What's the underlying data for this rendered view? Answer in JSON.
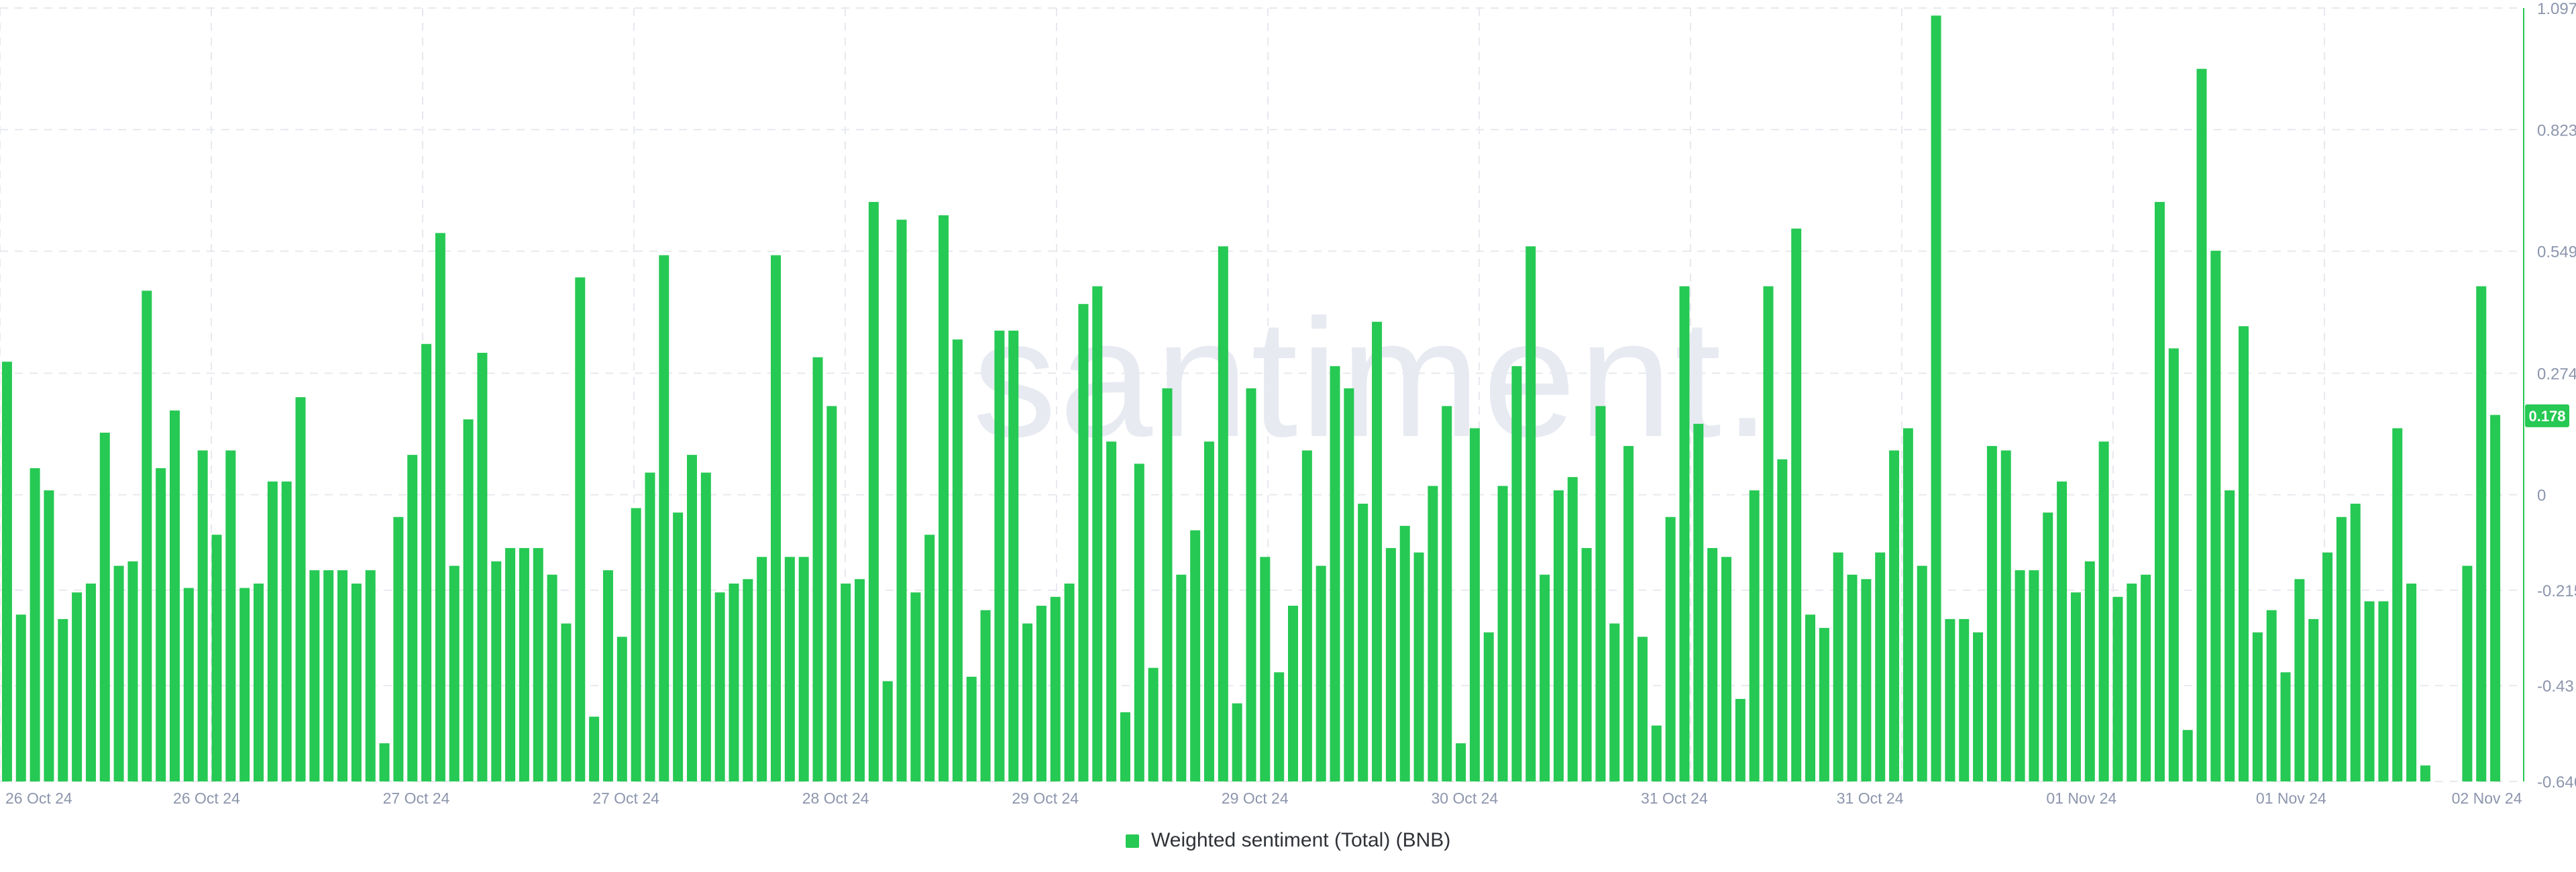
{
  "watermark": "santiment.",
  "colors": {
    "bar": "#26c953",
    "grid": "#e7e9ee",
    "tick": "#8c95ad",
    "badge": "#26c953"
  },
  "chart_data": {
    "type": "bar",
    "title": "",
    "xlabel": "",
    "ylabel": "",
    "series_name": "Weighted sentiment (Total) (BNB)",
    "ylim": [
      -0.646,
      1.097
    ],
    "yticks": [
      "1.097",
      "0.823",
      "0.549",
      "0.274",
      "0",
      "-0.215",
      "-0.43",
      "-0.646"
    ],
    "ytick_values": [
      1.097,
      0.823,
      0.549,
      0.274,
      0,
      -0.215,
      -0.43,
      -0.646
    ],
    "xticks": [
      {
        "label": "26 Oct 24",
        "index": 0
      },
      {
        "label": "26 Oct 24",
        "index": 12
      },
      {
        "label": "27 Oct 24",
        "index": 27
      },
      {
        "label": "27 Oct 24",
        "index": 42
      },
      {
        "label": "28 Oct 24",
        "index": 57
      },
      {
        "label": "29 Oct 24",
        "index": 72
      },
      {
        "label": "29 Oct 24",
        "index": 87
      },
      {
        "label": "30 Oct 24",
        "index": 102
      },
      {
        "label": "31 Oct 24",
        "index": 117
      },
      {
        "label": "31 Oct 24",
        "index": 131
      },
      {
        "label": "01 Nov 24",
        "index": 146
      },
      {
        "label": "01 Nov 24",
        "index": 161
      },
      {
        "label": "02 Nov 24",
        "index": 175
      }
    ],
    "current_value": "0.178",
    "values": [
      0.3,
      -0.27,
      0.06,
      0.01,
      -0.28,
      -0.22,
      -0.2,
      0.14,
      -0.16,
      -0.15,
      0.46,
      0.06,
      0.19,
      -0.21,
      0.1,
      -0.09,
      0.1,
      -0.21,
      -0.2,
      0.03,
      0.03,
      0.22,
      -0.17,
      -0.17,
      -0.17,
      -0.2,
      -0.17,
      -0.56,
      -0.05,
      0.09,
      0.34,
      0.59,
      -0.16,
      0.17,
      0.32,
      -0.15,
      -0.12,
      -0.12,
      -0.12,
      -0.18,
      -0.29,
      0.49,
      -0.5,
      -0.17,
      -0.32,
      -0.03,
      0.05,
      0.54,
      -0.04,
      0.09,
      0.05,
      -0.22,
      -0.2,
      -0.19,
      -0.14,
      0.54,
      -0.14,
      -0.14,
      0.31,
      0.2,
      -0.2,
      -0.19,
      0.66,
      -0.42,
      0.62,
      -0.22,
      -0.09,
      0.63,
      0.35,
      -0.41,
      -0.26,
      0.37,
      0.37,
      -0.29,
      -0.25,
      -0.23,
      -0.2,
      0.43,
      0.47,
      0.12,
      -0.49,
      0.07,
      -0.39,
      0.24,
      -0.18,
      -0.08,
      0.12,
      0.56,
      -0.47,
      0.24,
      -0.14,
      -0.4,
      -0.25,
      0.1,
      -0.16,
      0.29,
      0.24,
      -0.02,
      0.39,
      -0.12,
      -0.07,
      -0.13,
      0.02,
      0.2,
      -0.56,
      0.15,
      -0.31,
      0.02,
      0.29,
      0.56,
      -0.18,
      0.01,
      0.04,
      -0.12,
      0.2,
      -0.29,
      0.11,
      -0.32,
      -0.52,
      -0.05,
      0.47,
      0.16,
      -0.12,
      -0.14,
      -0.46,
      0.01,
      0.47,
      0.08,
      0.6,
      -0.27,
      -0.3,
      -0.13,
      -0.18,
      -0.19,
      -0.13,
      0.1,
      0.15,
      -0.16,
      1.08,
      -0.28,
      -0.28,
      -0.31,
      0.11,
      0.1,
      -0.17,
      -0.17,
      -0.04,
      0.03,
      -0.22,
      -0.15,
      0.12,
      -0.23,
      -0.2,
      -0.18,
      0.66,
      0.33,
      -0.53,
      0.96,
      0.55,
      0.01,
      0.38,
      -0.31,
      -0.26,
      -0.4,
      -0.19,
      -0.28,
      -0.13,
      -0.05,
      -0.02,
      -0.24,
      -0.24,
      0.15,
      -0.2,
      -0.61,
      null,
      -0.65,
      -0.16,
      0.47,
      0.18
    ]
  },
  "legend": {
    "label": "Weighted sentiment (Total) (BNB)"
  }
}
